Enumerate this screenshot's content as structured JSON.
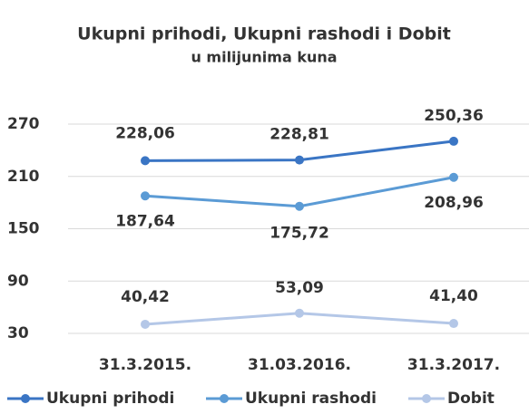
{
  "chart_data": {
    "type": "line",
    "title": "Ukupni prihodi, Ukupni rashodi i Dobit",
    "subtitle": "u milijunima kuna",
    "categories": [
      "31.3.2015.",
      "31.03.2016.",
      "31.3.2017."
    ],
    "series": [
      {
        "name": "Ukupni prihodi",
        "color": "#3a75c4",
        "values": [
          228.06,
          228.81,
          250.36
        ],
        "value_labels": [
          "228,06",
          "228,81",
          "250,36"
        ]
      },
      {
        "name": "Ukupni rashodi",
        "color": "#5b9bd5",
        "values": [
          187.64,
          175.72,
          208.96
        ],
        "value_labels": [
          "187,64",
          "175,72",
          "208,96"
        ]
      },
      {
        "name": "Dobit",
        "color": "#b4c7e7",
        "values": [
          40.42,
          53.09,
          41.4
        ],
        "value_labels": [
          "40,42",
          "53,09",
          "41,40"
        ]
      }
    ],
    "ylim": [
      30,
      270
    ],
    "yticks": [
      30,
      90,
      150,
      210,
      270
    ],
    "grid": true,
    "legend": "bottom"
  }
}
